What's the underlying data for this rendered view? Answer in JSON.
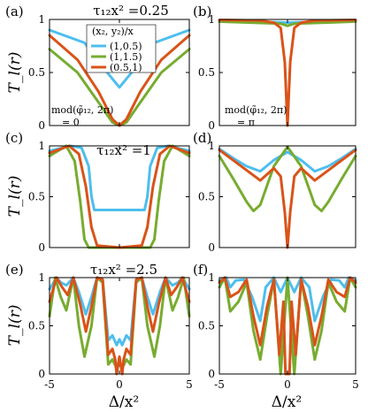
{
  "colors": {
    "blue": "#4DBEEE",
    "green": "#77AC30",
    "red": "#D95319"
  },
  "figure": {
    "titles": {
      "top": "τ₁₂x² =0.25",
      "mid": "τ₁₂x² =1",
      "bot": "τ₁₂x² =2.5"
    },
    "ylabel": "T_l(r)",
    "xlabel": "Δ/x²",
    "annotations": {
      "a_line1": "mod(φ̃₁₂, 2π)",
      "a_line2": "= 0",
      "b_line1": "mod(φ̃₁₂, 2π)",
      "b_line2": "= π"
    },
    "legend": {
      "title": "(x₂, y₂)/x",
      "entries": [
        "(1,0.5)",
        "(1,1.5)",
        "(0.5,1)"
      ]
    }
  },
  "chart_data": [
    {
      "panel": "(a)",
      "type": "line",
      "xlim": [
        -5,
        5
      ],
      "ylim": [
        0,
        1
      ],
      "xticks": [
        "-5",
        "0",
        "5"
      ],
      "yticks": [
        "0",
        "0.5",
        "1"
      ],
      "series": [
        {
          "name": "(1,0.5)",
          "x": [
            -5,
            -2.5,
            -1,
            0,
            1,
            2.5,
            5
          ],
          "y": [
            0.9,
            0.78,
            0.52,
            0.36,
            0.52,
            0.78,
            0.9
          ]
        },
        {
          "name": "(1,1.5)",
          "x": [
            -5,
            -3,
            -1.5,
            -0.5,
            0,
            0.5,
            1.5,
            3,
            5
          ],
          "y": [
            0.72,
            0.5,
            0.22,
            0.03,
            0.0,
            0.03,
            0.22,
            0.5,
            0.72
          ]
        },
        {
          "name": "(0.5,1)",
          "x": [
            -5,
            -3,
            -1.5,
            -0.5,
            0,
            0.5,
            1.5,
            3,
            5
          ],
          "y": [
            0.85,
            0.62,
            0.32,
            0.06,
            0.0,
            0.06,
            0.32,
            0.62,
            0.85
          ]
        }
      ]
    },
    {
      "panel": "(b)",
      "type": "line",
      "xlim": [
        -5,
        5
      ],
      "ylim": [
        0,
        1
      ],
      "xticks": [
        "-5",
        "0",
        "5"
      ],
      "yticks": [
        "0",
        "0.5",
        "1"
      ],
      "series": [
        {
          "name": "(1,0.5)",
          "x": [
            -5,
            0,
            5
          ],
          "y": [
            0.99,
            0.97,
            0.99
          ]
        },
        {
          "name": "(1,1.5)",
          "x": [
            -5,
            -0.5,
            0,
            0.5,
            5
          ],
          "y": [
            0.98,
            0.96,
            0.94,
            0.96,
            0.98
          ]
        },
        {
          "name": "(0.5,1)",
          "x": [
            -5,
            -2,
            -1,
            -0.5,
            -0.2,
            0,
            0.2,
            0.5,
            1,
            2,
            5
          ],
          "y": [
            0.995,
            0.99,
            0.97,
            0.92,
            0.6,
            0.0,
            0.6,
            0.92,
            0.97,
            0.99,
            0.995
          ]
        }
      ]
    },
    {
      "panel": "(c)",
      "type": "line",
      "xlim": [
        -5,
        5
      ],
      "ylim": [
        0,
        1
      ],
      "xticks": [
        "-5",
        "0",
        "5"
      ],
      "yticks": [
        "0",
        "0.5",
        "1"
      ],
      "series": [
        {
          "name": "(1,0.5)",
          "x": [
            -5,
            -3.5,
            -2.7,
            -2.2,
            -2.0,
            -1.8,
            0,
            1.8,
            2.0,
            2.2,
            2.7,
            3.5,
            5
          ],
          "y": [
            0.95,
            1.0,
            0.98,
            0.8,
            0.5,
            0.37,
            0.37,
            0.37,
            0.5,
            0.8,
            0.98,
            1.0,
            0.95
          ]
        },
        {
          "name": "(1,1.5)",
          "x": [
            -5,
            -3.8,
            -3.2,
            -2.8,
            -2.5,
            -2.2,
            0,
            2.2,
            2.5,
            2.8,
            3.2,
            3.8,
            5
          ],
          "y": [
            0.9,
            1.0,
            0.85,
            0.45,
            0.08,
            0.0,
            0.0,
            0.0,
            0.08,
            0.45,
            0.85,
            1.0,
            0.9
          ]
        },
        {
          "name": "(0.5,1)",
          "x": [
            -5,
            -3.6,
            -2.9,
            -2.4,
            -2.0,
            -1.6,
            0,
            1.6,
            2.0,
            2.4,
            2.9,
            3.6,
            5
          ],
          "y": [
            0.93,
            1.0,
            0.92,
            0.6,
            0.2,
            0.02,
            0.0,
            0.02,
            0.2,
            0.6,
            0.92,
            1.0,
            0.93
          ]
        }
      ]
    },
    {
      "panel": "(d)",
      "type": "line",
      "xlim": [
        -5,
        5
      ],
      "ylim": [
        0,
        1
      ],
      "xticks": [
        "-5",
        "0",
        "5"
      ],
      "yticks": [
        "0",
        "0.5",
        "1"
      ],
      "series": [
        {
          "name": "(1,0.5)",
          "x": [
            -5,
            -4,
            -3,
            -2,
            -1,
            0,
            1,
            2,
            3,
            4,
            5
          ],
          "y": [
            0.97,
            0.88,
            0.8,
            0.75,
            0.86,
            0.94,
            0.86,
            0.75,
            0.8,
            0.88,
            0.97
          ]
        },
        {
          "name": "(1,1.5)",
          "x": [
            -5,
            -4,
            -3,
            -2.5,
            -2,
            -1,
            0,
            1,
            2,
            2.5,
            3,
            4,
            5
          ],
          "y": [
            0.9,
            0.68,
            0.45,
            0.36,
            0.42,
            0.8,
            0.99,
            0.8,
            0.42,
            0.36,
            0.45,
            0.68,
            0.9
          ]
        },
        {
          "name": "(0.5,1)",
          "x": [
            -5,
            -4,
            -3,
            -2,
            -1,
            -0.5,
            -0.2,
            0,
            0.2,
            0.5,
            1,
            2,
            3,
            4,
            5
          ],
          "y": [
            0.96,
            0.86,
            0.76,
            0.66,
            0.78,
            0.7,
            0.35,
            0.0,
            0.35,
            0.7,
            0.78,
            0.66,
            0.76,
            0.86,
            0.96
          ]
        }
      ]
    },
    {
      "panel": "(e)",
      "type": "line",
      "xlim": [
        -5,
        5
      ],
      "ylim": [
        0,
        1
      ],
      "xticks": [
        "-5",
        "0",
        "5"
      ],
      "yticks": [
        "0",
        "0.5",
        "1"
      ],
      "series": [
        {
          "name": "(1,0.5)",
          "x": [
            -5,
            -4.5,
            -4.2,
            -3.8,
            -3.3,
            -2.9,
            -2.4,
            -2.0,
            -1.6,
            -1.2,
            -0.8,
            -0.5,
            -0.2,
            0,
            0.2,
            0.5,
            0.8,
            1.2,
            1.6,
            2.0,
            2.4,
            2.9,
            3.3,
            3.8,
            4.2,
            4.5,
            5
          ],
          "y": [
            0.88,
            1.0,
            0.95,
            0.92,
            1.0,
            0.85,
            0.62,
            0.8,
            1.0,
            0.98,
            0.35,
            0.4,
            0.3,
            0.36,
            0.3,
            0.4,
            0.35,
            0.98,
            1.0,
            0.8,
            0.62,
            0.85,
            1.0,
            0.92,
            0.95,
            1.0,
            0.88
          ]
        },
        {
          "name": "(1,1.5)",
          "x": [
            -5,
            -4.6,
            -4.2,
            -3.8,
            -3.3,
            -2.9,
            -2.5,
            -2.0,
            -1.6,
            -1.2,
            -0.8,
            -0.5,
            -0.2,
            0,
            0.2,
            0.5,
            0.8,
            1.2,
            1.6,
            2.0,
            2.5,
            2.9,
            3.3,
            3.8,
            4.2,
            4.6,
            5
          ],
          "y": [
            0.6,
            1.0,
            0.8,
            0.66,
            1.0,
            0.5,
            0.18,
            0.5,
            1.0,
            0.95,
            0.1,
            0.15,
            0.06,
            0.1,
            0.06,
            0.15,
            0.1,
            0.95,
            1.0,
            0.5,
            0.18,
            0.5,
            1.0,
            0.66,
            0.8,
            1.0,
            0.6
          ]
        },
        {
          "name": "(0.5,1)",
          "x": [
            -5,
            -4.5,
            -4.1,
            -3.7,
            -3.3,
            -2.8,
            -2.4,
            -2.0,
            -1.6,
            -1.2,
            -0.8,
            -0.5,
            -0.3,
            -0.2,
            0,
            0.2,
            0.3,
            0.5,
            0.8,
            1.2,
            1.6,
            2.0,
            2.4,
            2.8,
            3.3,
            3.7,
            4.1,
            4.5,
            5
          ],
          "y": [
            0.75,
            1.0,
            0.9,
            0.82,
            1.0,
            0.72,
            0.44,
            0.7,
            1.0,
            0.98,
            0.2,
            0.26,
            0.15,
            0.0,
            0.18,
            0.0,
            0.15,
            0.26,
            0.2,
            0.98,
            1.0,
            0.7,
            0.44,
            0.72,
            1.0,
            0.82,
            0.9,
            1.0,
            0.75
          ]
        }
      ]
    },
    {
      "panel": "(f)",
      "type": "line",
      "xlim": [
        -5,
        5
      ],
      "ylim": [
        0,
        1
      ],
      "xticks": [
        "-5",
        "0",
        "5"
      ],
      "yticks": [
        "0",
        "0.5",
        "1"
      ],
      "series": [
        {
          "name": "(1,0.5)",
          "x": [
            -5,
            -4.5,
            -4.2,
            -3.8,
            -3.2,
            -2.6,
            -2.0,
            -1.6,
            -1.0,
            -0.5,
            0,
            0.5,
            1.0,
            1.6,
            2.0,
            2.6,
            3.2,
            3.8,
            4.2,
            4.5,
            5
          ],
          "y": [
            0.97,
            1.0,
            0.9,
            0.97,
            0.98,
            0.8,
            0.55,
            0.9,
            1.0,
            0.85,
            1.0,
            0.85,
            1.0,
            0.9,
            0.55,
            0.8,
            0.98,
            0.97,
            0.9,
            1.0,
            0.97
          ]
        },
        {
          "name": "(1,1.5)",
          "x": [
            -5,
            -4.6,
            -4.2,
            -3.6,
            -3.0,
            -2.5,
            -2.0,
            -1.5,
            -1.0,
            -0.5,
            0,
            0.5,
            1.0,
            1.5,
            2.0,
            2.5,
            3.0,
            3.6,
            4.2,
            4.6,
            5
          ],
          "y": [
            0.9,
            1.0,
            0.65,
            0.75,
            0.95,
            0.45,
            0.15,
            0.6,
            0.98,
            0.0,
            1.0,
            0.0,
            0.98,
            0.6,
            0.15,
            0.45,
            0.95,
            0.75,
            0.65,
            1.0,
            0.9
          ]
        },
        {
          "name": "(0.5,1)",
          "x": [
            -5,
            -4.6,
            -4.2,
            -3.6,
            -3.0,
            -2.5,
            -2.0,
            -1.5,
            -1.0,
            -0.6,
            -0.3,
            -0.15,
            0,
            0.15,
            0.3,
            0.6,
            1.0,
            1.5,
            2.0,
            2.5,
            3.0,
            3.6,
            4.2,
            4.6,
            5
          ],
          "y": [
            0.95,
            1.0,
            0.8,
            0.85,
            0.98,
            0.6,
            0.3,
            0.7,
            0.98,
            0.2,
            0.75,
            0.0,
            0.0,
            0.0,
            0.75,
            0.2,
            0.98,
            0.7,
            0.3,
            0.6,
            0.98,
            0.85,
            0.8,
            1.0,
            0.95
          ]
        }
      ]
    }
  ]
}
